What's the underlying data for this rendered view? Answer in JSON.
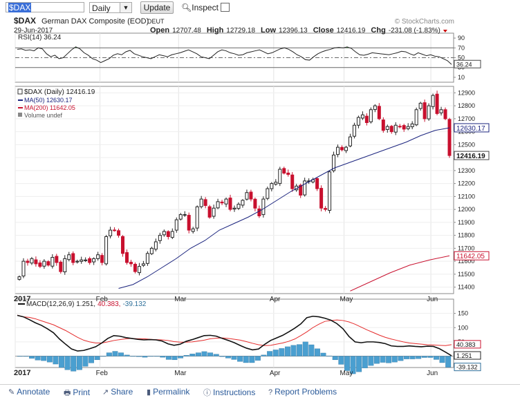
{
  "toolbar": {
    "symbol": "$DAX",
    "period": "Daily",
    "update_label": "Update",
    "inspect_label": "Inspect"
  },
  "header": {
    "symbol": "$DAX",
    "name": "German DAX Composite (EOD)",
    "exchange": "DEUT",
    "date": "29-Jun-2017",
    "watermark": "© StockCharts.com",
    "open_label": "Open",
    "open": "12707.48",
    "high_label": "High",
    "high": "12729.18",
    "low_label": "Low",
    "low": "12396.13",
    "close_label": "Close",
    "close": "12416.19",
    "chg_label": "Chg",
    "chg": "-231.08 (-1.83%)"
  },
  "footer": {
    "annotate": "Annotate",
    "print": "Print",
    "share": "Share",
    "permalink": "Permalink",
    "instructions": "Instructions",
    "report": "Report Problems"
  },
  "chart_data": [
    {
      "type": "line",
      "title": "RSI(14) 36.24",
      "ylim": [
        0,
        100
      ],
      "yticks": [
        10,
        30,
        50,
        70,
        90
      ],
      "thresholds": [
        30,
        50,
        70
      ],
      "last_value": "36.24",
      "series": [
        {
          "name": "RSI(14)",
          "values": [
            67,
            68,
            65,
            66,
            64,
            70,
            68,
            58,
            52,
            55,
            48,
            50,
            58,
            66,
            72,
            68,
            60,
            55,
            48,
            45,
            40,
            44,
            48,
            55,
            58,
            56,
            62,
            65,
            58,
            55,
            52,
            50,
            48,
            52,
            56,
            54,
            52,
            56,
            58,
            60,
            63,
            66,
            62,
            58,
            52,
            50,
            48,
            55,
            62,
            66,
            64,
            60,
            58,
            55,
            56,
            60,
            62,
            64,
            66,
            62,
            58,
            60,
            64,
            68,
            70,
            67,
            62,
            56,
            52,
            46,
            45,
            52,
            58,
            62,
            65,
            67,
            70,
            71,
            70,
            72,
            69,
            62,
            56,
            55,
            57,
            60,
            59,
            58,
            57,
            56,
            58,
            60,
            63,
            62,
            58,
            55,
            60,
            57,
            54,
            56,
            53,
            52,
            48,
            44,
            36.24
          ]
        }
      ]
    },
    {
      "type": "line",
      "title": "$DAX (Daily) 12416.19",
      "ylim": [
        11350,
        12950
      ],
      "yticks": [
        11400,
        11500,
        11600,
        11700,
        11800,
        11900,
        12000,
        12100,
        12200,
        12300,
        12400,
        12500,
        12600,
        12700,
        12800,
        12900
      ],
      "xlabels": [
        "2017",
        "Feb",
        "Mar",
        "Apr",
        "May",
        "Jun"
      ],
      "legend": [
        "$DAX (Daily) 12416.19",
        "MA(50) 12630.17",
        "MA(200) 11642.05",
        "Volume undef"
      ],
      "last_labels": {
        "close": "12416.19",
        "ma50": "12630.17",
        "ma200": "11642.05"
      },
      "series": [
        {
          "name": "$DAX (Daily)",
          "close": [
            11480,
            11600,
            11590,
            11620,
            11580,
            11560,
            11600,
            11570,
            11630,
            11590,
            11520,
            11620,
            11650,
            11590,
            11600,
            11610,
            11610,
            11590,
            11620,
            11650,
            11590,
            11790,
            11840,
            11840,
            11800,
            11660,
            11590,
            11580,
            11520,
            11560,
            11580,
            11660,
            11700,
            11750,
            11800,
            11830,
            11790,
            11830,
            11920,
            11960,
            11960,
            11840,
            11850,
            12020,
            12080,
            12030,
            11940,
            12010,
            12060,
            12050,
            12080,
            12000,
            12010,
            12040,
            12070,
            12130,
            12080,
            12010,
            11950,
            12080,
            12160,
            12200,
            12210,
            12310,
            12280,
            12270,
            12160,
            12180,
            12110,
            12220,
            12220,
            12230,
            12160,
            12010,
            12000,
            12290,
            12420,
            12480,
            12460,
            12480,
            12560,
            12650,
            12710,
            12730,
            12670,
            12770,
            12800,
            12700,
            12610,
            12640,
            12600,
            12650,
            12640,
            12620,
            12640,
            12660,
            12770,
            12820,
            12700,
            12800,
            12880,
            12740,
            12770,
            12700,
            12416
          ]
        },
        {
          "name": "MA(50)",
          "values": [
            11390,
            11420,
            11480,
            11550,
            11620,
            11700,
            11760,
            11840,
            11890,
            11940,
            12000,
            12070,
            12140,
            12200,
            12260,
            12320,
            12360,
            12400,
            12440,
            12480,
            12520,
            12570,
            12610,
            12630.17
          ]
        },
        {
          "name": "MA(200)",
          "values": [
            11370,
            11440,
            11510,
            11570,
            11610,
            11642.05
          ]
        }
      ]
    },
    {
      "type": "line",
      "title": "MACD(12,26,9) 1.251, 40.383, -39.132",
      "ylim": [
        -40,
        200
      ],
      "yticks": [
        0,
        50,
        100,
        150
      ],
      "last_labels": {
        "macd": "1.251",
        "signal": "40.383",
        "hist": "-39.132"
      },
      "series": [
        {
          "name": "MACD",
          "values": [
            143,
            138,
            128,
            117,
            108,
            96,
            82,
            60,
            42,
            25,
            18,
            20,
            26,
            33,
            46,
            62,
            72,
            70,
            65,
            62,
            59,
            57,
            58,
            57,
            53,
            43,
            38,
            42,
            52,
            58,
            65,
            72,
            73,
            70,
            62,
            55,
            47,
            37,
            28,
            22,
            25,
            41,
            55,
            64,
            73,
            85,
            98,
            113,
            135,
            140,
            138,
            133,
            126,
            114,
            96,
            69,
            50,
            47,
            50,
            50,
            48,
            44,
            36,
            34,
            34,
            36,
            34,
            33,
            35,
            34,
            26,
            14,
            1.251
          ]
        },
        {
          "name": "Signal",
          "values": [
            144,
            138,
            136,
            131,
            124,
            117,
            110,
            100,
            90,
            78,
            66,
            56,
            50,
            46,
            46,
            50,
            55,
            58,
            61,
            62,
            61,
            61,
            59,
            58,
            57,
            55,
            51,
            49,
            49,
            50,
            53,
            56,
            61,
            63,
            64,
            62,
            59,
            56,
            51,
            45,
            40,
            37,
            38,
            42,
            46,
            52,
            60,
            72,
            85,
            100,
            112,
            122,
            125,
            127,
            125,
            120,
            112,
            102,
            92,
            83,
            74,
            66,
            60,
            55,
            50,
            46,
            44,
            42,
            40,
            39,
            38,
            37,
            40.383
          ]
        },
        {
          "name": "Histogram",
          "values": [
            -1,
            0,
            -8,
            -14,
            -16,
            -21,
            -28,
            -40,
            -48,
            -53,
            -48,
            -36,
            -24,
            -13,
            0,
            12,
            17,
            12,
            4,
            0,
            -2,
            -4,
            -1,
            -1,
            -4,
            -12,
            -13,
            -7,
            3,
            8,
            12,
            16,
            12,
            7,
            -2,
            -7,
            -12,
            -19,
            -23,
            -23,
            -15,
            4,
            17,
            22,
            27,
            33,
            38,
            41,
            50,
            40,
            26,
            11,
            1,
            -13,
            -29,
            -51,
            -62,
            -55,
            -42,
            -33,
            -26,
            -22,
            -24,
            -21,
            -16,
            -10,
            -10,
            -9,
            -5,
            -5,
            -12,
            -23,
            -39.132
          ]
        }
      ]
    }
  ]
}
